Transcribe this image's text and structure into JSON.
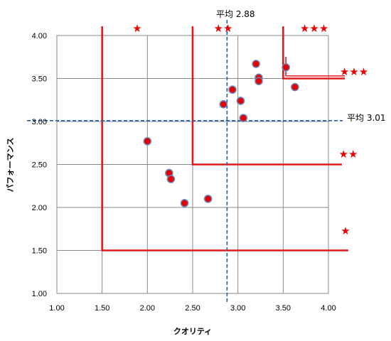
{
  "chart_data": {
    "type": "scatter",
    "xlabel": "クオリティ",
    "ylabel": "パフォーマンス",
    "xlim": [
      1.0,
      4.0
    ],
    "ylim": [
      1.0,
      4.0
    ],
    "xticks": [
      "1.00",
      "1.50",
      "2.00",
      "2.50",
      "3.00",
      "3.50",
      "4.00"
    ],
    "yticks": [
      "1.00",
      "1.50",
      "2.00",
      "2.50",
      "3.00",
      "3.50",
      "4.00"
    ],
    "grid": true,
    "points": [
      {
        "x": 2.0,
        "y": 2.77
      },
      {
        "x": 2.24,
        "y": 2.4
      },
      {
        "x": 2.26,
        "y": 2.33
      },
      {
        "x": 2.41,
        "y": 2.05
      },
      {
        "x": 2.67,
        "y": 2.1
      },
      {
        "x": 2.84,
        "y": 3.2
      },
      {
        "x": 2.94,
        "y": 3.37
      },
      {
        "x": 3.03,
        "y": 3.24
      },
      {
        "x": 3.06,
        "y": 3.04
      },
      {
        "x": 3.2,
        "y": 3.67
      },
      {
        "x": 3.23,
        "y": 3.51
      },
      {
        "x": 3.23,
        "y": 3.47
      },
      {
        "x": 3.53,
        "y": 3.63
      },
      {
        "x": 3.63,
        "y": 3.4
      }
    ],
    "mean_lines": {
      "x": {
        "value": 2.88,
        "label": "平均 2.88"
      },
      "y": {
        "value": 3.01,
        "label": "平均 3.01"
      }
    },
    "tier_regions": [
      {
        "corner": 1.5,
        "label": "★"
      },
      {
        "corner": 2.5,
        "label": "★★"
      },
      {
        "corner": 3.5,
        "label": "★★★"
      }
    ],
    "top_labels": [
      "★",
      "★★",
      "★★★"
    ],
    "colors": {
      "point_fill": "#e60000",
      "point_edge": "#6a84b8",
      "tier_line": "#e31a1c",
      "mean_line": "#1f5fa8",
      "grid": "#888888"
    }
  }
}
